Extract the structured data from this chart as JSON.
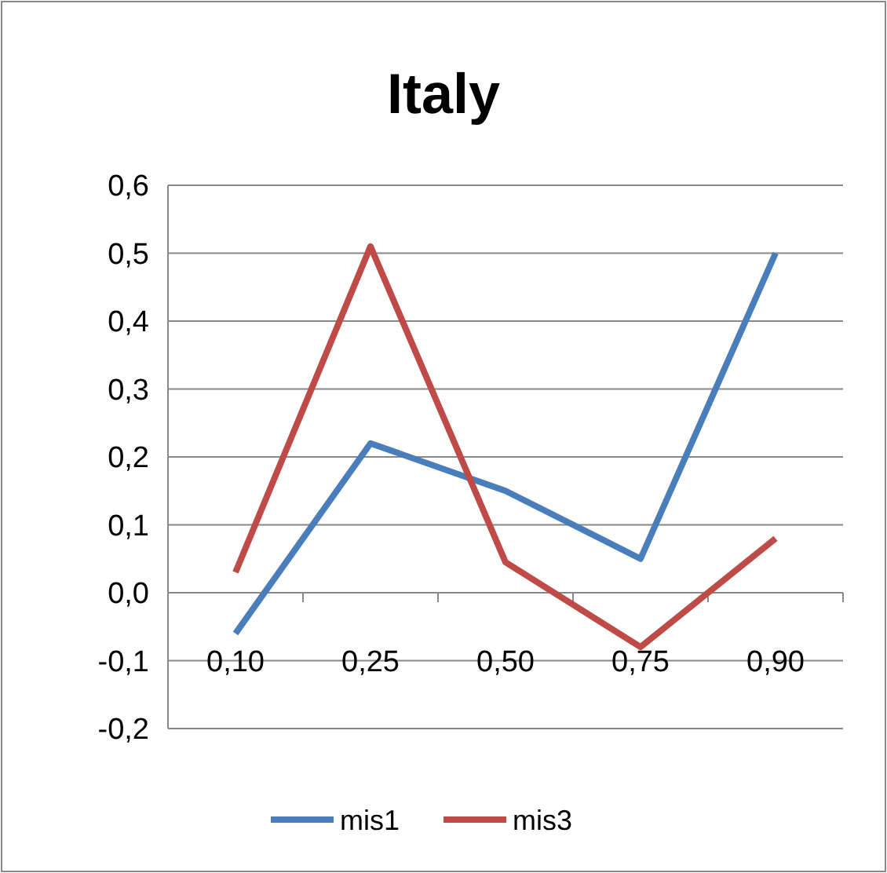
{
  "chart_data": {
    "type": "line",
    "title": "Italy",
    "categories": [
      "0,10",
      "0,25",
      "0,50",
      "0,75",
      "0,90"
    ],
    "series": [
      {
        "name": "mis1",
        "color": "#4a7ebb",
        "values": [
          -0.06,
          0.22,
          0.15,
          0.05,
          0.5
        ]
      },
      {
        "name": "mis3",
        "color": "#be4b48",
        "values": [
          0.03,
          0.51,
          0.045,
          -0.08,
          0.08
        ]
      }
    ],
    "ylim": [
      -0.2,
      0.6
    ],
    "yticks": [
      {
        "value": -0.2,
        "label": "-0,2"
      },
      {
        "value": -0.1,
        "label": "-0,1"
      },
      {
        "value": 0,
        "label": "0,0"
      },
      {
        "value": 0.1,
        "label": "0,1"
      },
      {
        "value": 0.2,
        "label": "0,2"
      },
      {
        "value": 0.3,
        "label": "0,3"
      },
      {
        "value": 0.4,
        "label": "0,4"
      },
      {
        "value": 0.5,
        "label": "0,5"
      },
      {
        "value": 0.6,
        "label": "0,6"
      }
    ],
    "grid": "y",
    "legend": "bottom",
    "marker": "none",
    "line_style": "solid"
  }
}
